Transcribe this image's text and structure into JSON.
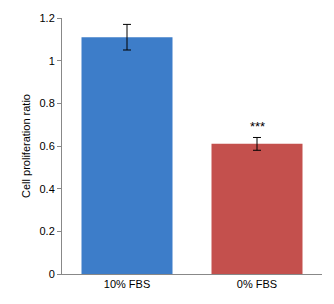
{
  "chart_data": {
    "type": "bar",
    "categories": [
      "10% FBS",
      "0% FBS"
    ],
    "values": [
      1.11,
      0.61
    ],
    "errors": [
      0.06,
      0.03
    ],
    "colors": [
      "#3d7dc9",
      "#c4504d"
    ],
    "y_label": "Cell proliferation ratio",
    "ylim": [
      0,
      1.2
    ],
    "yticks": [
      0,
      0.2,
      0.4,
      0.6,
      0.8,
      1,
      1.2
    ],
    "grid": false,
    "annotations": [
      {
        "text": "***",
        "category": "0% FBS"
      }
    ]
  }
}
